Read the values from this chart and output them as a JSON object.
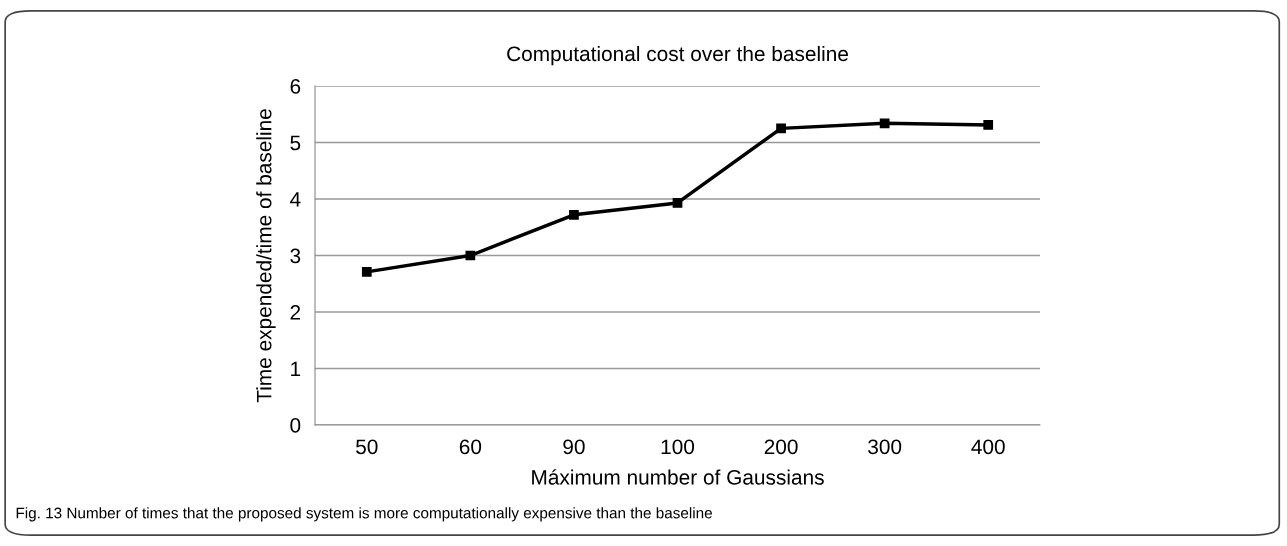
{
  "chart_data": {
    "type": "line",
    "title": "Computational cost over the baseline",
    "xlabel": "Máximum number of Gaussians",
    "ylabel": "Time expended/time of baseline",
    "categories": [
      "50",
      "60",
      "90",
      "100",
      "200",
      "300",
      "400"
    ],
    "series": [
      {
        "color": "#000000",
        "values": [
          2.71,
          3.0,
          3.72,
          3.93,
          5.25,
          5.34,
          5.31
        ]
      }
    ],
    "ylim": [
      0,
      6
    ],
    "yticks": [
      0,
      1,
      2,
      3,
      4,
      5,
      6
    ],
    "grid": "y",
    "marker": "square",
    "line_style": "solid",
    "legend": false,
    "annotations": [
      "Fig. 13 Number of times that the proposed system is more computationally expensive than the baseline"
    ]
  }
}
